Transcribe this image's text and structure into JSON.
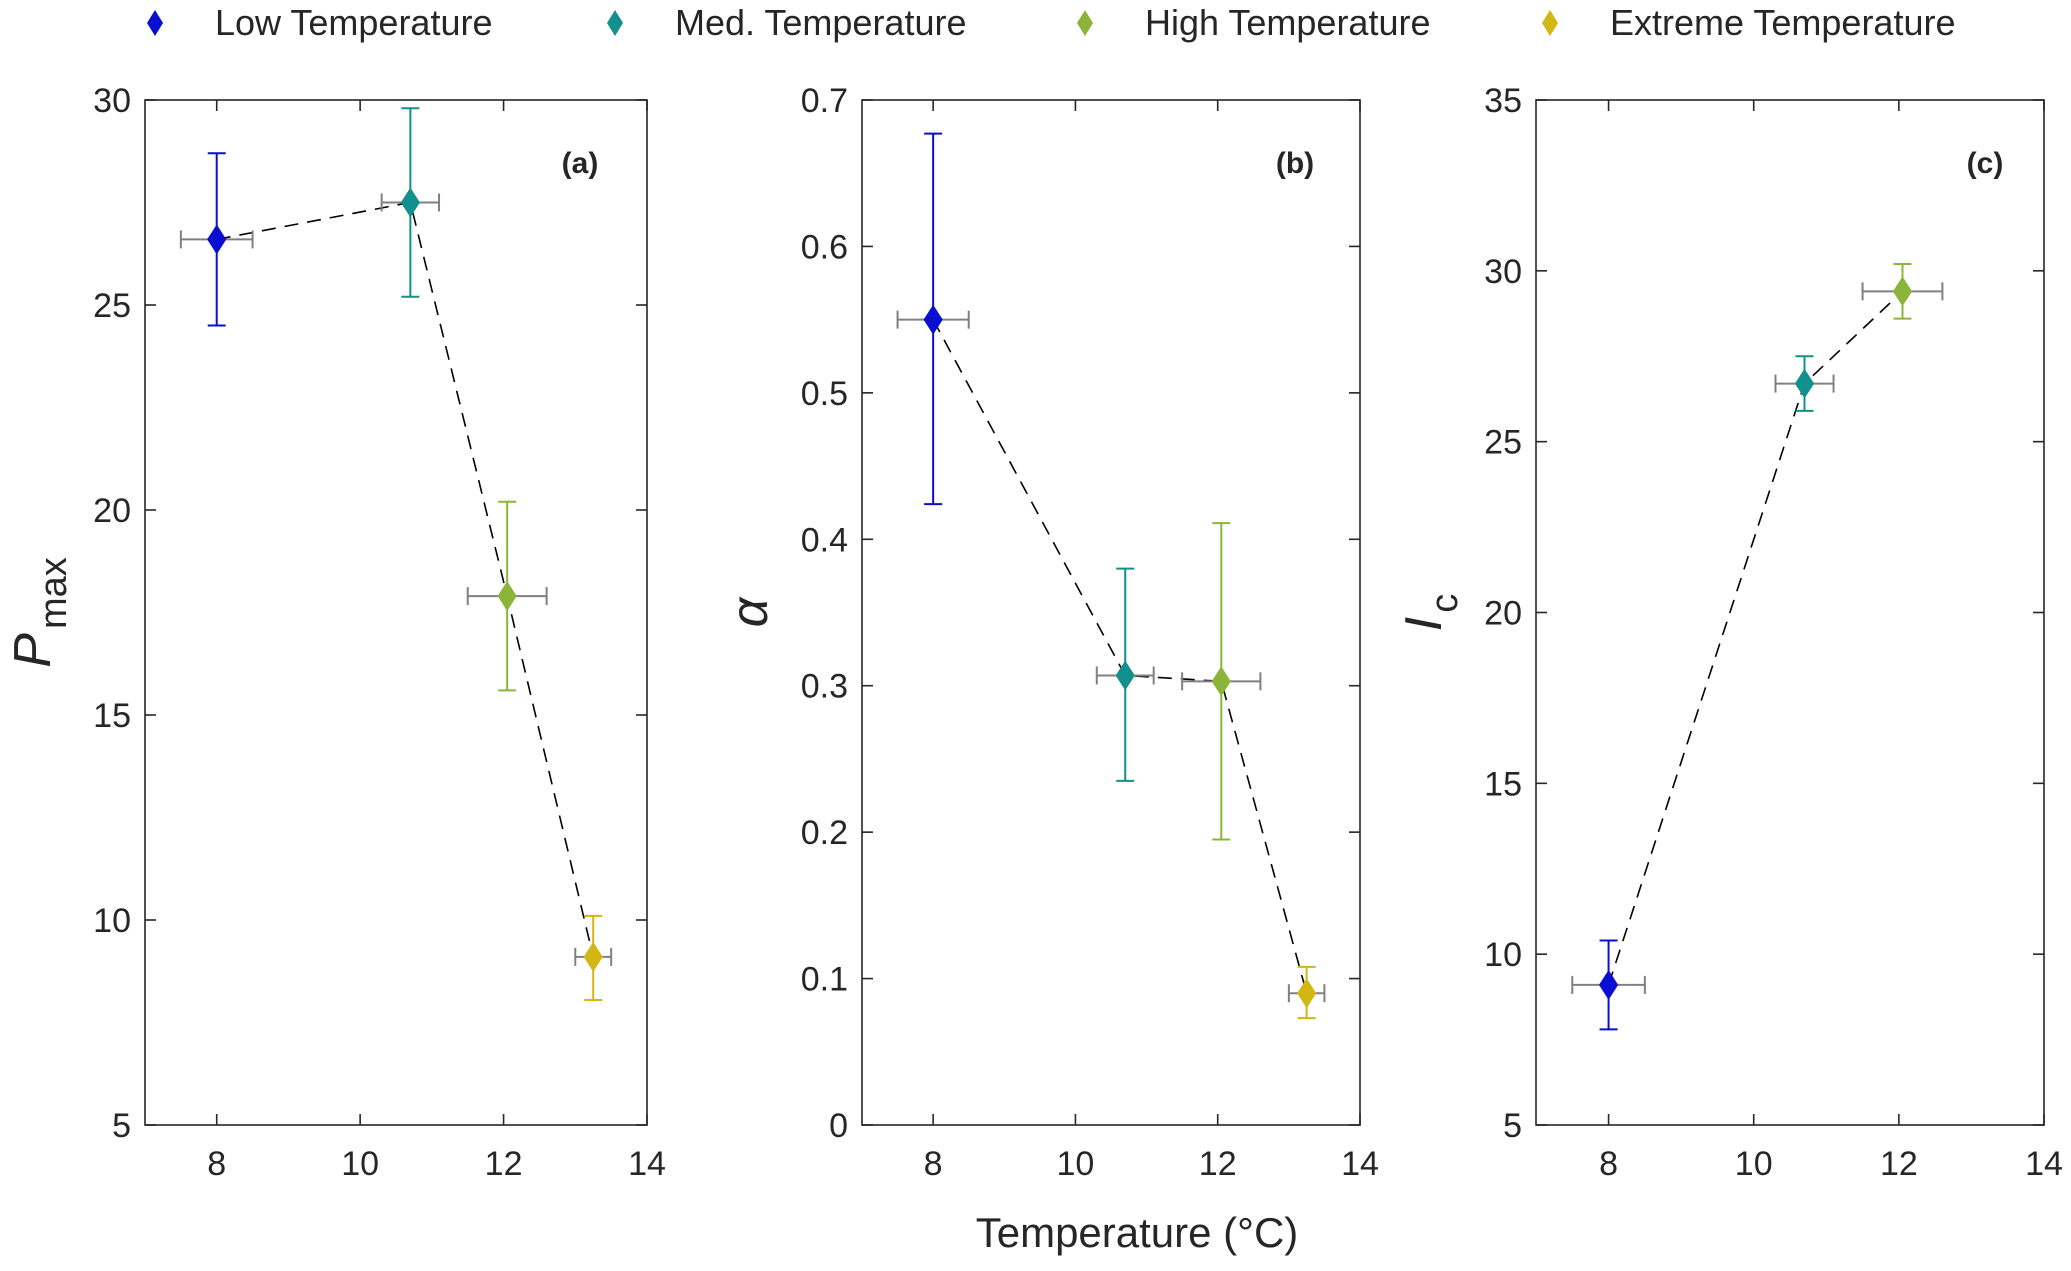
{
  "legend": [
    {
      "name": "Low Temperature",
      "color": "#0a0ed0"
    },
    {
      "name": "Med. Temperature",
      "color": "#12908e"
    },
    {
      "name": "High Temperature",
      "color": "#8bb53a"
    },
    {
      "name": "Extreme Temperature",
      "color": "#d2b614"
    }
  ],
  "xlabel": "Temperature (°C)",
  "xerr_color": "#808080",
  "chart_data": [
    {
      "type": "scatter",
      "panel_label": "(a)",
      "ylabel": {
        "main": "P",
        "sub": "max"
      },
      "xlim": [
        7,
        14
      ],
      "ylim": [
        5,
        30
      ],
      "xticks": [
        8,
        10,
        12,
        14
      ],
      "yticks": [
        5,
        10,
        15,
        20,
        25,
        30
      ],
      "points": [
        {
          "series": "Low Temperature",
          "x": 8.0,
          "y": 26.6,
          "ylow": 24.5,
          "yhigh": 28.7,
          "xerr": 0.5
        },
        {
          "series": "Med. Temperature",
          "x": 10.7,
          "y": 27.5,
          "ylow": 25.2,
          "yhigh": 29.8,
          "xerr": 0.4
        },
        {
          "series": "High Temperature",
          "x": 12.05,
          "y": 17.9,
          "ylow": 15.6,
          "yhigh": 20.2,
          "xerr": 0.55
        },
        {
          "series": "Extreme Temperature",
          "x": 13.25,
          "y": 9.1,
          "ylow": 8.05,
          "yhigh": 10.1,
          "xerr": 0.25
        }
      ]
    },
    {
      "type": "scatter",
      "panel_label": "(b)",
      "ylabel": {
        "main": "α",
        "sub": ""
      },
      "xlim": [
        7,
        14
      ],
      "ylim": [
        0,
        0.7
      ],
      "xticks": [
        8,
        10,
        12,
        14
      ],
      "yticks": [
        0,
        0.1,
        0.2,
        0.3,
        0.4,
        0.5,
        0.6,
        0.7
      ],
      "points": [
        {
          "series": "Low Temperature",
          "x": 8.0,
          "y": 0.55,
          "ylow": 0.424,
          "yhigh": 0.677,
          "xerr": 0.5
        },
        {
          "series": "Med. Temperature",
          "x": 10.7,
          "y": 0.307,
          "ylow": 0.235,
          "yhigh": 0.38,
          "xerr": 0.4
        },
        {
          "series": "High Temperature",
          "x": 12.05,
          "y": 0.303,
          "ylow": 0.195,
          "yhigh": 0.411,
          "xerr": 0.55
        },
        {
          "series": "Extreme Temperature",
          "x": 13.25,
          "y": 0.09,
          "ylow": 0.073,
          "yhigh": 0.108,
          "xerr": 0.25
        }
      ]
    },
    {
      "type": "scatter",
      "panel_label": "(c)",
      "ylabel": {
        "main": "I",
        "sub": "c"
      },
      "xlim": [
        7,
        14
      ],
      "ylim": [
        5,
        35
      ],
      "xticks": [
        8,
        10,
        12,
        14
      ],
      "yticks": [
        5,
        10,
        15,
        20,
        25,
        30,
        35
      ],
      "points": [
        {
          "series": "Low Temperature",
          "x": 8.0,
          "y": 9.1,
          "ylow": 7.8,
          "yhigh": 10.4,
          "xerr": 0.5
        },
        {
          "series": "Med. Temperature",
          "x": 10.7,
          "y": 26.7,
          "ylow": 25.9,
          "yhigh": 27.5,
          "xerr": 0.4
        },
        {
          "series": "High Temperature",
          "x": 12.05,
          "y": 29.4,
          "ylow": 28.6,
          "yhigh": 30.2,
          "xerr": 0.55
        }
      ]
    }
  ]
}
